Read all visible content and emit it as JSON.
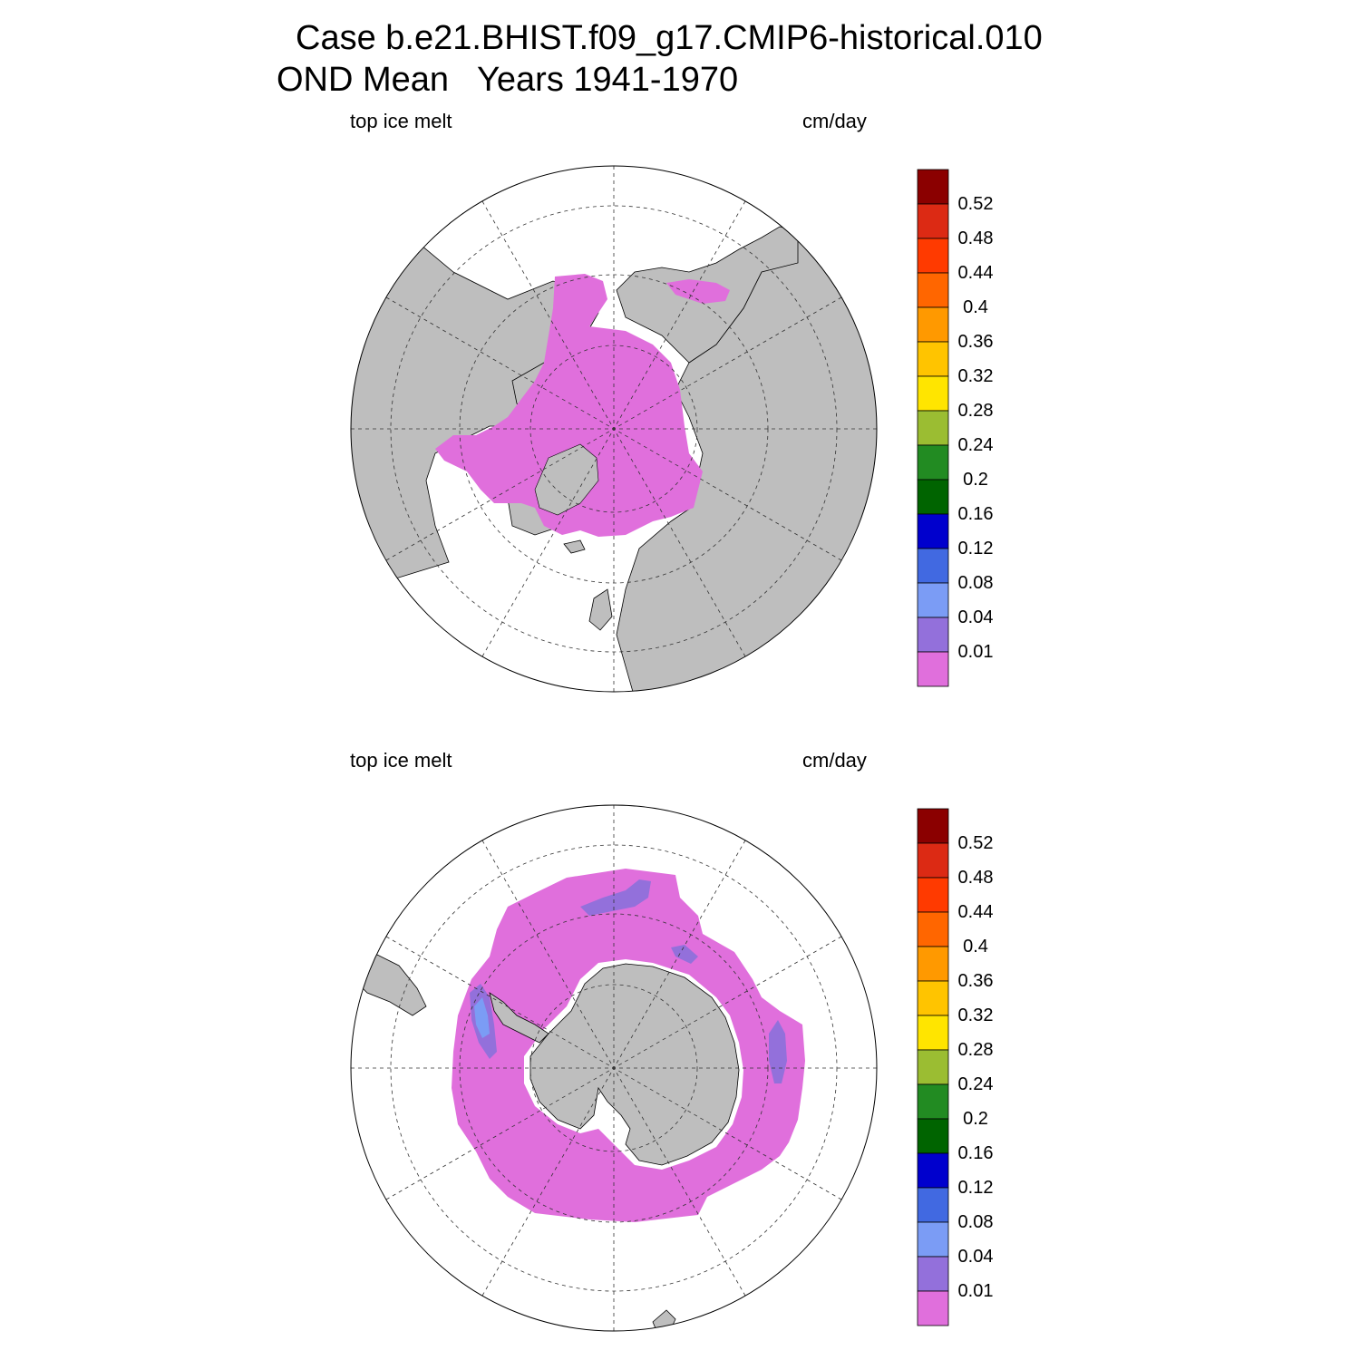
{
  "title": {
    "line1": "Case b.e21.BHIST.f09_g17.CMIP6-historical.010",
    "line2": "OND Mean   Years 1941-1970"
  },
  "panels": [
    {
      "id": "north",
      "hemisphere": "Northern",
      "left_label": "top ice melt",
      "right_label": "cm/day"
    },
    {
      "id": "south",
      "hemisphere": "Southern",
      "left_label": "top ice melt",
      "right_label": "cm/day"
    }
  ],
  "colorbar": {
    "labels": [
      "0.52",
      "0.48",
      "0.44",
      "0.4",
      "0.36",
      "0.32",
      "0.28",
      "0.24",
      "0.2",
      "0.16",
      "0.12",
      "0.08",
      "0.04",
      "0.01"
    ],
    "colors": [
      "#8b0000",
      "#dc2a14",
      "#ff3a00",
      "#ff6600",
      "#ff9900",
      "#ffc400",
      "#ffe500",
      "#9bbd32",
      "#228b22",
      "#006400",
      "#0000cd",
      "#4169e1",
      "#7b9cf5",
      "#9370db",
      "#e06fdc"
    ]
  },
  "colors": {
    "land": "#bebebe",
    "ice_melt_low": "#e06fdc",
    "ice_melt_mid": "#9370db",
    "ice_melt_high": "#7b9cf5",
    "ocean": "#ffffff"
  }
}
